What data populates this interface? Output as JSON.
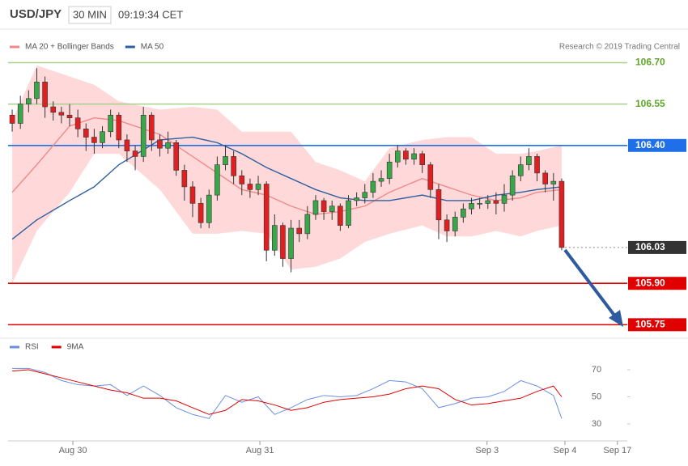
{
  "chart_data": [
    {
      "type": "candlestick",
      "title": "USD/JPY",
      "interval": "30 MIN",
      "time": "09:19:34 CET",
      "source": "Research © 2019 Trading Central",
      "xlim": [
        -0.5,
        75
      ],
      "ylim": [
        105.71,
        106.81
      ],
      "up_color": "#3aa64a",
      "down_color": "#e02020",
      "band_color": "#ffd9d9",
      "open": [
        106.51,
        106.48,
        106.55,
        106.57,
        106.63,
        106.54,
        106.52,
        106.51,
        106.5,
        106.46,
        106.43,
        106.41,
        106.45,
        106.51,
        106.42,
        106.38,
        106.36,
        106.51,
        106.42,
        106.39,
        106.41,
        106.31,
        106.25,
        106.19,
        106.12,
        106.22,
        106.33,
        106.36,
        106.29,
        106.26,
        106.24,
        106.26,
        106.02,
        106.11,
        105.99,
        106.1,
        106.08,
        106.15,
        106.2,
        106.16,
        106.18,
        106.11,
        106.2,
        106.21,
        106.23,
        106.27,
        106.28,
        106.34,
        106.38,
        106.35,
        106.37,
        106.33,
        106.24,
        106.13,
        106.09,
        106.14,
        106.17,
        106.19,
        106.19,
        106.2,
        106.19,
        106.22,
        106.29,
        106.33,
        106.36,
        106.3,
        106.26,
        106.27
      ],
      "high": [
        106.53,
        106.58,
        106.6,
        106.68,
        106.65,
        106.56,
        106.54,
        106.55,
        106.53,
        106.48,
        106.46,
        106.47,
        106.53,
        106.52,
        106.44,
        106.4,
        106.54,
        106.52,
        106.44,
        106.45,
        106.42,
        106.33,
        106.27,
        106.21,
        106.24,
        106.36,
        106.4,
        106.38,
        106.31,
        106.28,
        106.29,
        106.27,
        106.15,
        106.12,
        106.13,
        106.13,
        106.18,
        106.22,
        106.21,
        106.2,
        106.19,
        106.22,
        106.23,
        106.26,
        106.3,
        106.31,
        106.37,
        106.4,
        106.39,
        106.39,
        106.38,
        106.34,
        106.26,
        106.15,
        106.16,
        106.19,
        106.21,
        106.21,
        106.22,
        106.23,
        106.26,
        106.31,
        106.36,
        106.39,
        106.37,
        106.31,
        106.3,
        106.28
      ],
      "low": [
        106.45,
        106.46,
        106.52,
        106.55,
        106.5,
        106.49,
        106.48,
        106.47,
        106.43,
        106.38,
        106.37,
        106.39,
        106.43,
        106.39,
        106.34,
        106.31,
        106.34,
        106.38,
        106.36,
        106.37,
        106.29,
        106.2,
        106.14,
        106.1,
        106.1,
        106.2,
        106.31,
        106.26,
        106.22,
        106.21,
        106.22,
        105.98,
        106.0,
        105.96,
        105.94,
        106.05,
        106.06,
        106.13,
        106.13,
        106.13,
        106.09,
        106.1,
        106.18,
        106.19,
        106.21,
        106.25,
        106.26,
        106.32,
        106.33,
        106.33,
        106.3,
        106.21,
        106.06,
        106.05,
        106.07,
        106.12,
        106.15,
        106.17,
        106.17,
        106.15,
        106.16,
        106.2,
        106.27,
        106.31,
        106.27,
        106.23,
        106.2,
        106.02
      ],
      "close": [
        106.48,
        106.55,
        106.57,
        106.63,
        106.54,
        106.52,
        106.51,
        106.5,
        106.46,
        106.43,
        106.41,
        106.45,
        106.51,
        106.42,
        106.38,
        106.36,
        106.51,
        106.42,
        106.39,
        106.41,
        106.31,
        106.25,
        106.19,
        106.12,
        106.22,
        106.33,
        106.36,
        106.29,
        106.26,
        106.24,
        106.26,
        106.02,
        106.11,
        105.99,
        106.1,
        106.08,
        106.15,
        106.2,
        106.16,
        106.18,
        106.11,
        106.2,
        106.21,
        106.23,
        106.27,
        106.28,
        106.34,
        106.38,
        106.35,
        106.37,
        106.33,
        106.24,
        106.13,
        106.09,
        106.14,
        106.17,
        106.19,
        106.19,
        106.2,
        106.19,
        106.22,
        106.29,
        106.33,
        106.36,
        106.3,
        106.26,
        106.27,
        106.03
      ],
      "series": [
        {
          "name": "MA 20 + Bollinger Bands",
          "color": "#f08a8a",
          "x": [
            0,
            3,
            7,
            10,
            13,
            18,
            22,
            25,
            28,
            31,
            34,
            37,
            40,
            43,
            46,
            50,
            53,
            56,
            59,
            62,
            64,
            67
          ],
          "values": [
            106.23,
            106.33,
            106.47,
            106.5,
            106.49,
            106.44,
            106.36,
            106.3,
            106.24,
            106.22,
            106.18,
            106.15,
            106.16,
            106.18,
            106.23,
            106.28,
            106.25,
            106.22,
            106.2,
            106.21,
            106.23,
            106.24
          ],
          "upper": [
            106.49,
            106.69,
            106.65,
            106.62,
            106.56,
            106.53,
            106.54,
            106.53,
            106.45,
            106.45,
            106.45,
            106.34,
            106.31,
            106.27,
            106.39,
            106.42,
            106.43,
            106.43,
            106.37,
            106.37,
            106.38,
            106.4
          ],
          "lower": [
            105.9,
            106.09,
            106.23,
            106.37,
            106.37,
            106.24,
            106.08,
            106.08,
            106.09,
            106.08,
            105.95,
            105.96,
            105.99,
            106.05,
            106.08,
            106.11,
            106.07,
            106.07,
            106.09,
            106.07,
            106.09,
            106.11
          ]
        },
        {
          "name": "MA 50",
          "color": "#2e5f9e",
          "x": [
            0,
            3,
            7,
            10,
            13,
            18,
            22,
            25,
            28,
            31,
            34,
            37,
            40,
            43,
            46,
            50,
            53,
            56,
            59,
            62,
            64,
            67
          ],
          "values": [
            106.06,
            106.13,
            106.2,
            106.25,
            106.33,
            106.42,
            106.43,
            106.41,
            106.37,
            106.32,
            106.28,
            106.24,
            106.21,
            106.2,
            106.2,
            106.22,
            106.2,
            106.2,
            106.22,
            106.23,
            106.24,
            106.25
          ]
        }
      ],
      "levels": [
        {
          "value": 106.7,
          "label": "106.70",
          "color": "#a8d08d",
          "text_color": "#5fa42a",
          "box": false,
          "dotted": false
        },
        {
          "value": 106.55,
          "label": "106.55",
          "color": "#a8d08d",
          "text_color": "#5fa42a",
          "box": false,
          "dotted": false
        },
        {
          "value": 106.4,
          "label": "106.40",
          "color": "#1f6fe8",
          "text_color": "#ffffff",
          "box": true,
          "dotted": false
        },
        {
          "value": 106.03,
          "label": "106.03",
          "color": "#333333",
          "text_color": "#ffffff",
          "box": true,
          "dotted": true
        },
        {
          "value": 105.9,
          "label": "105.90",
          "color": "#e00000",
          "text_color": "#ffffff",
          "box": true,
          "dotted": false
        },
        {
          "value": 105.75,
          "label": "105.75",
          "color": "#e00000",
          "text_color": "#ffffff",
          "box": true,
          "dotted": false
        }
      ]
    },
    {
      "type": "line",
      "xlim": [
        -0.5,
        75
      ],
      "ylim": [
        20,
        90
      ],
      "yticks": [
        30,
        50,
        70
      ],
      "xticks": [
        {
          "value": 7.4,
          "label": "Aug 30"
        },
        {
          "value": 30.2,
          "label": "Aug 31"
        },
        {
          "value": 57.9,
          "label": "Sep 3"
        },
        {
          "value": 67.4,
          "label": "Sep 4"
        },
        {
          "value": 73.8,
          "label": "Sep 17"
        }
      ],
      "series": [
        {
          "name": "RSI",
          "color": "#6b8fe0",
          "x": [
            0,
            2,
            4,
            6,
            8,
            10,
            12,
            14,
            16,
            18,
            20,
            22,
            24,
            26,
            28,
            30,
            32,
            34,
            36,
            38,
            40,
            42,
            44,
            46,
            48,
            50,
            52,
            54,
            56,
            58,
            60,
            62,
            64,
            66,
            67
          ],
          "values": [
            71,
            71,
            68,
            62,
            59,
            58,
            59,
            51,
            58,
            51,
            42,
            37,
            34,
            51,
            46,
            50,
            37,
            42,
            48,
            51,
            50,
            51,
            56,
            62,
            61,
            56,
            42,
            45,
            49,
            50,
            54,
            62,
            58,
            51,
            34
          ]
        },
        {
          "name": "9MA",
          "color": "#e00000",
          "x": [
            0,
            2,
            4,
            6,
            8,
            10,
            12,
            14,
            16,
            18,
            20,
            22,
            24,
            26,
            28,
            30,
            32,
            34,
            36,
            38,
            40,
            42,
            44,
            46,
            48,
            50,
            52,
            54,
            56,
            58,
            60,
            62,
            64,
            66,
            67
          ],
          "values": [
            69,
            70,
            67,
            64,
            61,
            58,
            55,
            53,
            49,
            49,
            47,
            42,
            37,
            40,
            48,
            47,
            44,
            40,
            42,
            46,
            48,
            49,
            50,
            52,
            56,
            58,
            56,
            48,
            44,
            45,
            47,
            49,
            54,
            58,
            50
          ]
        }
      ]
    }
  ]
}
